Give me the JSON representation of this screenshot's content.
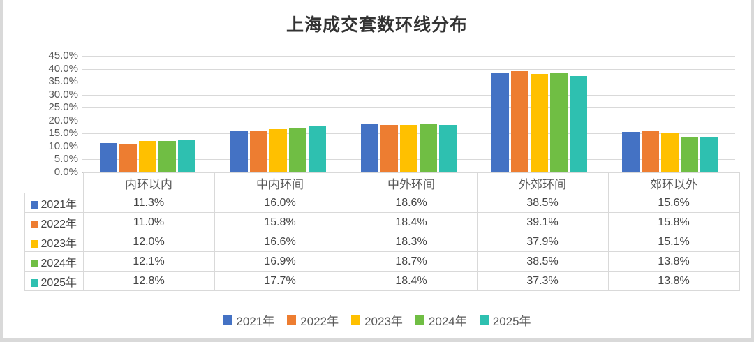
{
  "title": "上海成交套数环线分布",
  "chart_data": {
    "type": "bar",
    "title": "上海成交套数环线分布",
    "categories": [
      "内环以内",
      "中内环间",
      "中外环间",
      "外郊环间",
      "郊环以外"
    ],
    "series": [
      {
        "name": "2021年",
        "color": "#4472C4",
        "values": [
          11.3,
          16.0,
          18.6,
          38.5,
          15.6
        ]
      },
      {
        "name": "2022年",
        "color": "#ED7D31",
        "values": [
          11.0,
          15.8,
          18.4,
          39.1,
          15.8
        ]
      },
      {
        "name": "2023年",
        "color": "#FFC000",
        "values": [
          12.0,
          16.6,
          18.3,
          37.9,
          15.1
        ]
      },
      {
        "name": "2024年",
        "color": "#70BE44",
        "values": [
          12.1,
          16.9,
          18.7,
          38.5,
          13.8
        ]
      },
      {
        "name": "2025年",
        "color": "#2EC0B0",
        "values": [
          12.8,
          17.7,
          18.4,
          37.3,
          13.8
        ]
      }
    ],
    "value_suffix": "%",
    "value_decimals": 1,
    "ylim": [
      0,
      45
    ],
    "ytick_step": 5,
    "ytick_labels": [
      "45.0%",
      "40.0%",
      "35.0%",
      "30.0%",
      "25.0%",
      "20.0%",
      "15.0%",
      "10.0%",
      "5.0%",
      "0.0%"
    ],
    "grid": true,
    "legend_position": "bottom",
    "data_table": true
  }
}
